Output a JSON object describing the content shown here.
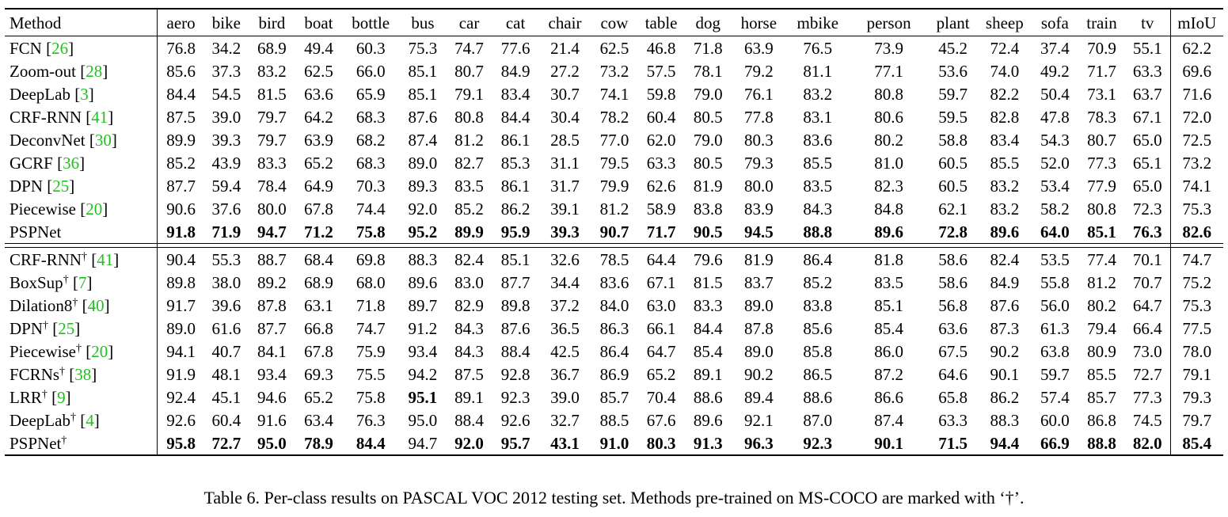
{
  "table": {
    "columns": [
      "Method",
      "aero",
      "bike",
      "bird",
      "boat",
      "bottle",
      "bus",
      "car",
      "cat",
      "chair",
      "cow",
      "table",
      "dog",
      "horse",
      "mbike",
      "person",
      "plant",
      "sheep",
      "sofa",
      "train",
      "tv",
      "mIoU"
    ],
    "groups": [
      {
        "rows": [
          {
            "method": "FCN",
            "dagger": false,
            "cite": "26",
            "values": [
              "76.8",
              "34.2",
              "68.9",
              "49.4",
              "60.3",
              "75.3",
              "74.7",
              "77.6",
              "21.4",
              "62.5",
              "46.8",
              "71.8",
              "63.9",
              "76.5",
              "73.9",
              "45.2",
              "72.4",
              "37.4",
              "70.9",
              "55.1",
              "62.2"
            ],
            "bold": []
          },
          {
            "method": "Zoom-out",
            "dagger": false,
            "cite": "28",
            "values": [
              "85.6",
              "37.3",
              "83.2",
              "62.5",
              "66.0",
              "85.1",
              "80.7",
              "84.9",
              "27.2",
              "73.2",
              "57.5",
              "78.1",
              "79.2",
              "81.1",
              "77.1",
              "53.6",
              "74.0",
              "49.2",
              "71.7",
              "63.3",
              "69.6"
            ],
            "bold": []
          },
          {
            "method": "DeepLab",
            "dagger": false,
            "cite": "3",
            "values": [
              "84.4",
              "54.5",
              "81.5",
              "63.6",
              "65.9",
              "85.1",
              "79.1",
              "83.4",
              "30.7",
              "74.1",
              "59.8",
              "79.0",
              "76.1",
              "83.2",
              "80.8",
              "59.7",
              "82.2",
              "50.4",
              "73.1",
              "63.7",
              "71.6"
            ],
            "bold": []
          },
          {
            "method": "CRF-RNN",
            "dagger": false,
            "cite": "41",
            "values": [
              "87.5",
              "39.0",
              "79.7",
              "64.2",
              "68.3",
              "87.6",
              "80.8",
              "84.4",
              "30.4",
              "78.2",
              "60.4",
              "80.5",
              "77.8",
              "83.1",
              "80.6",
              "59.5",
              "82.8",
              "47.8",
              "78.3",
              "67.1",
              "72.0"
            ],
            "bold": []
          },
          {
            "method": "DeconvNet",
            "dagger": false,
            "cite": "30",
            "values": [
              "89.9",
              "39.3",
              "79.7",
              "63.9",
              "68.2",
              "87.4",
              "81.2",
              "86.1",
              "28.5",
              "77.0",
              "62.0",
              "79.0",
              "80.3",
              "83.6",
              "80.2",
              "58.8",
              "83.4",
              "54.3",
              "80.7",
              "65.0",
              "72.5"
            ],
            "bold": []
          },
          {
            "method": "GCRF",
            "dagger": false,
            "cite": "36",
            "values": [
              "85.2",
              "43.9",
              "83.3",
              "65.2",
              "68.3",
              "89.0",
              "82.7",
              "85.3",
              "31.1",
              "79.5",
              "63.3",
              "80.5",
              "79.3",
              "85.5",
              "81.0",
              "60.5",
              "85.5",
              "52.0",
              "77.3",
              "65.1",
              "73.2"
            ],
            "bold": []
          },
          {
            "method": "DPN",
            "dagger": false,
            "cite": "25",
            "values": [
              "87.7",
              "59.4",
              "78.4",
              "64.9",
              "70.3",
              "89.3",
              "83.5",
              "86.1",
              "31.7",
              "79.9",
              "62.6",
              "81.9",
              "80.0",
              "83.5",
              "82.3",
              "60.5",
              "83.2",
              "53.4",
              "77.9",
              "65.0",
              "74.1"
            ],
            "bold": []
          },
          {
            "method": "Piecewise",
            "dagger": false,
            "cite": "20",
            "values": [
              "90.6",
              "37.6",
              "80.0",
              "67.8",
              "74.4",
              "92.0",
              "85.2",
              "86.2",
              "39.1",
              "81.2",
              "58.9",
              "83.8",
              "83.9",
              "84.3",
              "84.8",
              "62.1",
              "83.2",
              "58.2",
              "80.8",
              "72.3",
              "75.3"
            ],
            "bold": []
          },
          {
            "method": "PSPNet",
            "dagger": false,
            "cite": "",
            "values": [
              "91.8",
              "71.9",
              "94.7",
              "71.2",
              "75.8",
              "95.2",
              "89.9",
              "95.9",
              "39.3",
              "90.7",
              "71.7",
              "90.5",
              "94.5",
              "88.8",
              "89.6",
              "72.8",
              "89.6",
              "64.0",
              "85.1",
              "76.3",
              "82.6"
            ],
            "bold": [
              0,
              1,
              2,
              3,
              4,
              5,
              6,
              7,
              8,
              9,
              10,
              11,
              12,
              13,
              14,
              15,
              16,
              17,
              18,
              19,
              20
            ]
          }
        ]
      },
      {
        "rows": [
          {
            "method": "CRF-RNN",
            "dagger": true,
            "cite": "41",
            "values": [
              "90.4",
              "55.3",
              "88.7",
              "68.4",
              "69.8",
              "88.3",
              "82.4",
              "85.1",
              "32.6",
              "78.5",
              "64.4",
              "79.6",
              "81.9",
              "86.4",
              "81.8",
              "58.6",
              "82.4",
              "53.5",
              "77.4",
              "70.1",
              "74.7"
            ],
            "bold": []
          },
          {
            "method": "BoxSup",
            "dagger": true,
            "cite": "7",
            "values": [
              "89.8",
              "38.0",
              "89.2",
              "68.9",
              "68.0",
              "89.6",
              "83.0",
              "87.7",
              "34.4",
              "83.6",
              "67.1",
              "81.5",
              "83.7",
              "85.2",
              "83.5",
              "58.6",
              "84.9",
              "55.8",
              "81.2",
              "70.7",
              "75.2"
            ],
            "bold": []
          },
          {
            "method": "Dilation8",
            "dagger": true,
            "cite": "40",
            "values": [
              "91.7",
              "39.6",
              "87.8",
              "63.1",
              "71.8",
              "89.7",
              "82.9",
              "89.8",
              "37.2",
              "84.0",
              "63.0",
              "83.3",
              "89.0",
              "83.8",
              "85.1",
              "56.8",
              "87.6",
              "56.0",
              "80.2",
              "64.7",
              "75.3"
            ],
            "bold": []
          },
          {
            "method": "DPN",
            "dagger": true,
            "cite": "25",
            "values": [
              "89.0",
              "61.6",
              "87.7",
              "66.8",
              "74.7",
              "91.2",
              "84.3",
              "87.6",
              "36.5",
              "86.3",
              "66.1",
              "84.4",
              "87.8",
              "85.6",
              "85.4",
              "63.6",
              "87.3",
              "61.3",
              "79.4",
              "66.4",
              "77.5"
            ],
            "bold": []
          },
          {
            "method": "Piecewise",
            "dagger": true,
            "cite": "20",
            "values": [
              "94.1",
              "40.7",
              "84.1",
              "67.8",
              "75.9",
              "93.4",
              "84.3",
              "88.4",
              "42.5",
              "86.4",
              "64.7",
              "85.4",
              "89.0",
              "85.8",
              "86.0",
              "67.5",
              "90.2",
              "63.8",
              "80.9",
              "73.0",
              "78.0"
            ],
            "bold": []
          },
          {
            "method": "FCRNs",
            "dagger": true,
            "cite": "38",
            "values": [
              "91.9",
              "48.1",
              "93.4",
              "69.3",
              "75.5",
              "94.2",
              "87.5",
              "92.8",
              "36.7",
              "86.9",
              "65.2",
              "89.1",
              "90.2",
              "86.5",
              "87.2",
              "64.6",
              "90.1",
              "59.7",
              "85.5",
              "72.7",
              "79.1"
            ],
            "bold": []
          },
          {
            "method": "LRR",
            "dagger": true,
            "cite": "9",
            "values": [
              "92.4",
              "45.1",
              "94.6",
              "65.2",
              "75.8",
              "95.1",
              "89.1",
              "92.3",
              "39.0",
              "85.7",
              "70.4",
              "88.6",
              "89.4",
              "88.6",
              "86.6",
              "65.8",
              "86.2",
              "57.4",
              "85.7",
              "77.3",
              "79.3"
            ],
            "bold": [
              5
            ]
          },
          {
            "method": "DeepLab",
            "dagger": true,
            "cite": "4",
            "values": [
              "92.6",
              "60.4",
              "91.6",
              "63.4",
              "76.3",
              "95.0",
              "88.4",
              "92.6",
              "32.7",
              "88.5",
              "67.6",
              "89.6",
              "92.1",
              "87.0",
              "87.4",
              "63.3",
              "88.3",
              "60.0",
              "86.8",
              "74.5",
              "79.7"
            ],
            "bold": []
          },
          {
            "method": "PSPNet",
            "dagger": true,
            "cite": "",
            "values": [
              "95.8",
              "72.7",
              "95.0",
              "78.9",
              "84.4",
              "94.7",
              "92.0",
              "95.7",
              "43.1",
              "91.0",
              "80.3",
              "91.3",
              "96.3",
              "92.3",
              "90.1",
              "71.5",
              "94.4",
              "66.9",
              "88.8",
              "82.0",
              "85.4"
            ],
            "bold": [
              0,
              1,
              2,
              3,
              4,
              6,
              7,
              8,
              9,
              10,
              11,
              12,
              13,
              14,
              15,
              16,
              17,
              18,
              19,
              20
            ]
          }
        ]
      }
    ]
  },
  "caption": "Table 6. Per-class results on PASCAL VOC 2012 testing set. Methods pre-trained on MS-COCO are marked with ‘†’.",
  "dagger_symbol": "†",
  "colors": {
    "citation": "#22c01e",
    "text": "#000000"
  }
}
